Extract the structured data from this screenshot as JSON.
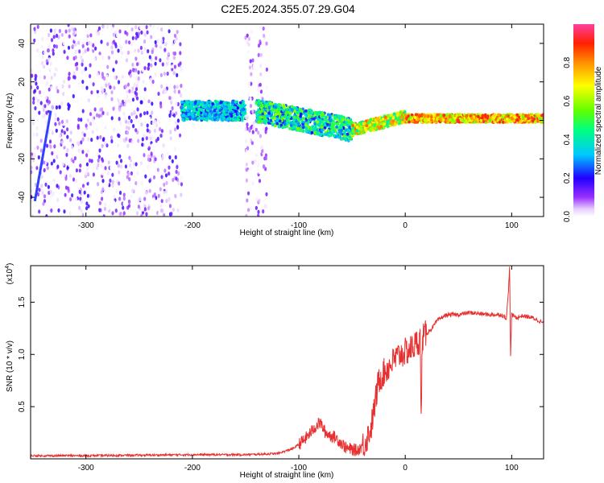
{
  "title": "C2E5.2024.355.07.29.G04",
  "colors": {
    "snr_line": "#e83030",
    "axis": "#000000"
  },
  "chart_data": [
    {
      "type": "heatmap",
      "xlabel": "Height of straight line (km)",
      "ylabel": "Frequency (Hz)",
      "xlim": [
        -352,
        130
      ],
      "ylim": [
        -50,
        50
      ],
      "xticks": [
        -300,
        -200,
        -100,
        0,
        100
      ],
      "yticks": [
        -40,
        -20,
        0,
        20,
        40
      ],
      "colorbar": {
        "label": "Normalized spectral amplitude",
        "ticks": [
          "0.0",
          "0.2",
          "0.4",
          "0.6",
          "0.8"
        ],
        "tick_values": [
          0.0,
          0.2,
          0.4,
          0.6,
          0.8
        ],
        "range": [
          0,
          1
        ],
        "colormap": "rainbow (white-violet-blue-cyan-green-yellow-red)"
      },
      "regions": [
        {
          "x": [
            -352,
            -210
          ],
          "freq_spread": [
            -50,
            50
          ],
          "amplitude": [
            0.0,
            0.2
          ],
          "pattern": "scattered noise"
        },
        {
          "x": [
            -210,
            -150
          ],
          "freq_center": 5,
          "freq_width": 10,
          "amplitude": [
            0.2,
            0.45
          ]
        },
        {
          "x": [
            -150,
            -130
          ],
          "freq_spread": [
            -50,
            50
          ],
          "amplitude": [
            0.0,
            0.15
          ],
          "pattern": "scattered noise"
        },
        {
          "x": [
            -140,
            -50
          ],
          "freq_center_start": 5,
          "freq_center_end": -5,
          "freq_width": 12,
          "amplitude": [
            0.2,
            0.6
          ]
        },
        {
          "x": [
            -50,
            0
          ],
          "freq_center_start": -5,
          "freq_center_end": 2,
          "freq_width": 6,
          "amplitude": [
            0.4,
            0.85
          ]
        },
        {
          "x": [
            0,
            130
          ],
          "freq_center": 1,
          "freq_width": 4,
          "amplitude": [
            0.55,
            0.95
          ]
        }
      ],
      "streak": {
        "x": [
          -348,
          -333
        ],
        "freq": [
          -42,
          5
        ]
      }
    },
    {
      "type": "line",
      "xlabel": "Height of straight line (km)",
      "ylabel": "SNR (10 * v/v)",
      "multiplier_label": "(x10",
      "multiplier_exp": "4",
      "multiplier_close": ")",
      "xlim": [
        -352,
        130
      ],
      "ylim": [
        0,
        1.85
      ],
      "xticks": [
        -300,
        -200,
        -100,
        0,
        100
      ],
      "yticks": [
        0.5,
        1.0,
        1.5
      ],
      "ytick_labels": [
        "0.5",
        "1.0",
        "1.5"
      ],
      "series": [
        {
          "x": [
            -352,
            -300,
            -250,
            -200,
            -150,
            -120,
            -105,
            -95,
            -85,
            -80,
            -75,
            -65,
            -55,
            -45,
            -38,
            -32,
            -28,
            -25,
            -22,
            -18,
            -14,
            -10,
            -5,
            0,
            5,
            10,
            14,
            15,
            16,
            20,
            25,
            30,
            35,
            40,
            50,
            60,
            70,
            80,
            90,
            95,
            97,
            98,
            99,
            100,
            102,
            105,
            110,
            120,
            130
          ],
          "y": [
            0.03,
            0.03,
            0.035,
            0.04,
            0.04,
            0.05,
            0.1,
            0.18,
            0.3,
            0.35,
            0.25,
            0.2,
            0.1,
            0.08,
            0.15,
            0.3,
            0.55,
            0.75,
            0.8,
            0.85,
            0.9,
            0.95,
            1.0,
            1.02,
            1.05,
            1.1,
            1.15,
            0.35,
            1.15,
            1.2,
            1.25,
            1.32,
            1.36,
            1.38,
            1.38,
            1.4,
            1.39,
            1.38,
            1.38,
            1.35,
            1.6,
            1.85,
            0.97,
            1.38,
            1.37,
            1.35,
            1.37,
            1.35,
            1.3
          ]
        }
      ]
    }
  ]
}
